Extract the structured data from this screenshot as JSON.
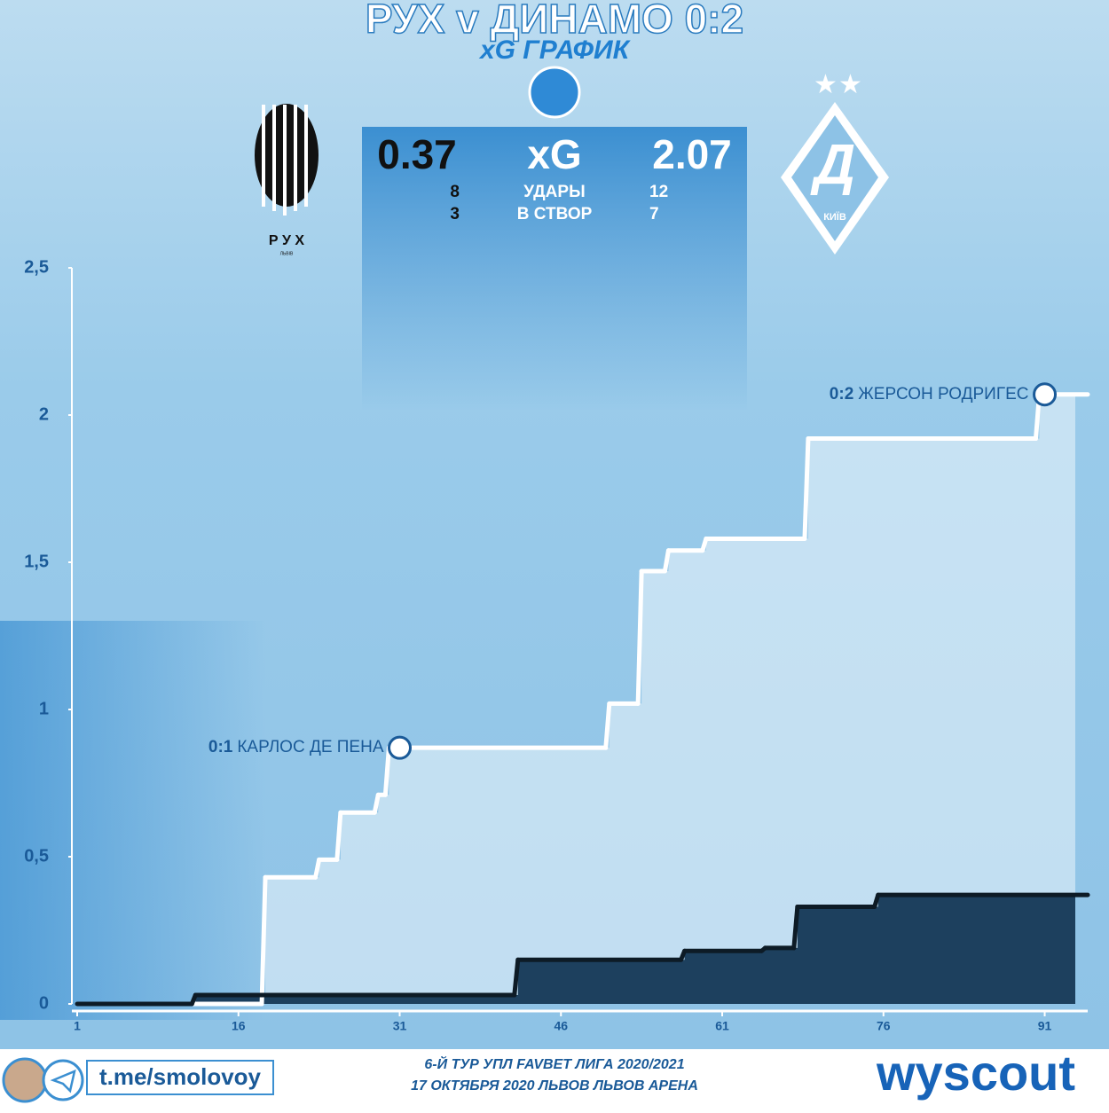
{
  "header": {
    "title": "РУХ v ДИНАМО 0:2",
    "subtitle": "xG ГРАФИК"
  },
  "stats": {
    "home_xg": "0.37",
    "label_xg": "xG",
    "away_xg": "2.07",
    "rows": [
      {
        "home": "8",
        "label": "УДАРЫ",
        "away": "12"
      },
      {
        "home": "3",
        "label": "В СТВОР",
        "away": "7"
      }
    ]
  },
  "teams": {
    "home": "Р У Х",
    "home_city": "ЛЬВІВ",
    "away_city": "КИЇВ"
  },
  "chart_data": {
    "type": "step",
    "xlim": [
      1,
      95
    ],
    "xticks": [
      1,
      16,
      31,
      46,
      61,
      76,
      91
    ],
    "ylim": [
      0,
      2.5
    ],
    "yticks": [
      0,
      {
        "value": 0.5,
        "label": "0,5"
      },
      1,
      {
        "value": 1.5,
        "label": "1,5"
      },
      2,
      {
        "value": 2.5,
        "label": "2,5"
      }
    ],
    "series": [
      {
        "name": "Динамо",
        "color": "#ffffff",
        "x": [
          1,
          18.5,
          23.5,
          25.5,
          29,
          30,
          50.5,
          53.5,
          56,
          59.5,
          69,
          90.5
        ],
        "values": [
          0,
          0.43,
          0.49,
          0.65,
          0.71,
          0.87,
          1.02,
          1.47,
          1.54,
          1.58,
          1.92,
          2.07
        ]
      },
      {
        "name": "Рух",
        "color": "#0d1b26",
        "x": [
          1,
          12,
          42,
          57.5,
          65,
          68,
          75.5
        ],
        "values": [
          0,
          0.03,
          0.15,
          0.18,
          0.19,
          0.33,
          0.37
        ]
      }
    ],
    "annotations": [
      {
        "x": 31,
        "y": 0.87,
        "score": "0:1",
        "text": "КАРЛОС ДЕ ПЕНА"
      },
      {
        "x": 91,
        "y": 2.07,
        "score": "0:2",
        "text": "ЖЕРСОН РОДРИГЕС"
      }
    ]
  },
  "footer": {
    "handle": "t.me/smolovoy",
    "line1": "6-Й ТУР УПЛ FAVBET ЛИГА 2020/2021",
    "line2": "17 ОКТЯБРЯ 2020 ЛЬВОВ ЛЬВОВ АРЕНА",
    "brand": "wyscout"
  }
}
